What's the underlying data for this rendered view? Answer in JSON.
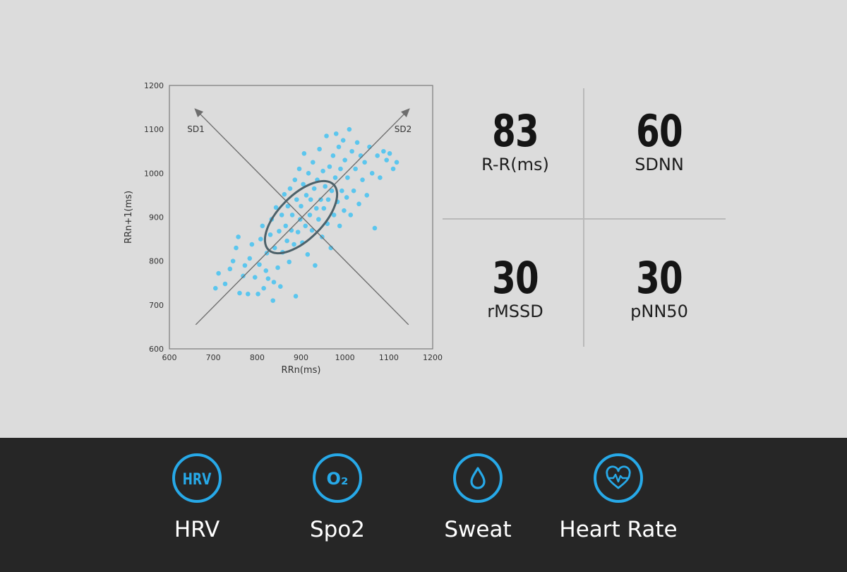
{
  "chart_data": {
    "type": "scatter",
    "xlabel": "RRn(ms)",
    "ylabel": "RRn+1(ms)",
    "xlim": [
      600,
      1200
    ],
    "ylim": [
      600,
      1200
    ],
    "xticks": [
      "600",
      "700",
      "800",
      "900",
      "1000",
      "1100",
      "1200"
    ],
    "yticks": [
      "600",
      "700",
      "800",
      "900",
      "1000",
      "1100",
      "1200"
    ],
    "annotations": [
      "SD1",
      "SD2"
    ],
    "grid": false,
    "point_color": "#4cc3ef",
    "series": [
      {
        "points": [
          [
            705,
            738
          ],
          [
            712,
            772
          ],
          [
            727,
            748
          ],
          [
            738,
            782
          ],
          [
            745,
            800
          ],
          [
            752,
            830
          ],
          [
            757,
            855
          ],
          [
            760,
            727
          ],
          [
            768,
            766
          ],
          [
            772,
            790
          ],
          [
            779,
            725
          ],
          [
            783,
            806
          ],
          [
            788,
            838
          ],
          [
            795,
            763
          ],
          [
            802,
            725
          ],
          [
            805,
            792
          ],
          [
            808,
            850
          ],
          [
            812,
            880
          ],
          [
            815,
            738
          ],
          [
            820,
            778
          ],
          [
            822,
            818
          ],
          [
            825,
            760
          ],
          [
            830,
            860
          ],
          [
            833,
            895
          ],
          [
            836,
            710
          ],
          [
            838,
            752
          ],
          [
            840,
            830
          ],
          [
            843,
            922
          ],
          [
            847,
            785
          ],
          [
            850,
            868
          ],
          [
            853,
            742
          ],
          [
            856,
            905
          ],
          [
            858,
            820
          ],
          [
            862,
            952
          ],
          [
            865,
            880
          ],
          [
            868,
            846
          ],
          [
            870,
            925
          ],
          [
            873,
            798
          ],
          [
            875,
            965
          ],
          [
            878,
            870
          ],
          [
            880,
            905
          ],
          [
            884,
            838
          ],
          [
            886,
            985
          ],
          [
            888,
            720
          ],
          [
            890,
            940
          ],
          [
            893,
            866
          ],
          [
            896,
            1010
          ],
          [
            898,
            895
          ],
          [
            900,
            925
          ],
          [
            903,
            842
          ],
          [
            905,
            975
          ],
          [
            907,
            1045
          ],
          [
            910,
            880
          ],
          [
            912,
            950
          ],
          [
            915,
            815
          ],
          [
            917,
            1000
          ],
          [
            920,
            905
          ],
          [
            922,
            940
          ],
          [
            925,
            870
          ],
          [
            927,
            1025
          ],
          [
            930,
            965
          ],
          [
            932,
            790
          ],
          [
            935,
            920
          ],
          [
            937,
            985
          ],
          [
            940,
            895
          ],
          [
            942,
            1055
          ],
          [
            945,
            940
          ],
          [
            948,
            855
          ],
          [
            950,
            1005
          ],
          [
            952,
            920
          ],
          [
            955,
            970
          ],
          [
            958,
            1085
          ],
          [
            960,
            885
          ],
          [
            962,
            940
          ],
          [
            965,
            1015
          ],
          [
            968,
            830
          ],
          [
            970,
            960
          ],
          [
            973,
            1040
          ],
          [
            975,
            905
          ],
          [
            978,
            990
          ],
          [
            980,
            1090
          ],
          [
            983,
            935
          ],
          [
            986,
            1060
          ],
          [
            988,
            880
          ],
          [
            990,
            1010
          ],
          [
            993,
            960
          ],
          [
            996,
            1075
          ],
          [
            998,
            915
          ],
          [
            1000,
            1030
          ],
          [
            1004,
            945
          ],
          [
            1006,
            990
          ],
          [
            1010,
            1100
          ],
          [
            1013,
            905
          ],
          [
            1016,
            1050
          ],
          [
            1020,
            960
          ],
          [
            1024,
            1010
          ],
          [
            1028,
            1070
          ],
          [
            1032,
            930
          ],
          [
            1036,
            1040
          ],
          [
            1040,
            985
          ],
          [
            1045,
            1025
          ],
          [
            1050,
            950
          ],
          [
            1056,
            1060
          ],
          [
            1062,
            1000
          ],
          [
            1068,
            875
          ],
          [
            1074,
            1040
          ],
          [
            1080,
            990
          ],
          [
            1088,
            1050
          ],
          [
            1095,
            1030
          ],
          [
            1102,
            1045
          ],
          [
            1110,
            1010
          ],
          [
            1118,
            1025
          ]
        ]
      }
    ],
    "sd2_axis": {
      "from": [
        660,
        655
      ],
      "to": [
        1145,
        1145
      ]
    },
    "sd1_axis": {
      "from": [
        1145,
        655
      ],
      "to": [
        660,
        1145
      ]
    },
    "ellipse": {
      "cx": 900,
      "cy": 900,
      "sd1": 50,
      "sd2": 105,
      "angle_deg": 45
    }
  },
  "metrics": [
    {
      "value": "83",
      "label": "R-R(ms)"
    },
    {
      "value": "60",
      "label": "SDNN"
    },
    {
      "value": "30",
      "label": "rMSSD"
    },
    {
      "value": "30",
      "label": "pNN50"
    }
  ],
  "features": [
    {
      "label": "HRV",
      "icon": "hrv-icon",
      "icon_text": "HRV"
    },
    {
      "label": "Spo2",
      "icon": "o2-icon",
      "icon_text": "O₂"
    },
    {
      "label": "Sweat",
      "icon": "droplet-icon"
    },
    {
      "label": "Heart Rate",
      "icon": "heart-pulse-icon"
    }
  ],
  "colors": {
    "background": "#dcdcdc",
    "bottom_bar": "#262626",
    "accent": "#27a9e8",
    "scatter": "#4cc3ef",
    "axis_lines": "#7a7a7a"
  }
}
